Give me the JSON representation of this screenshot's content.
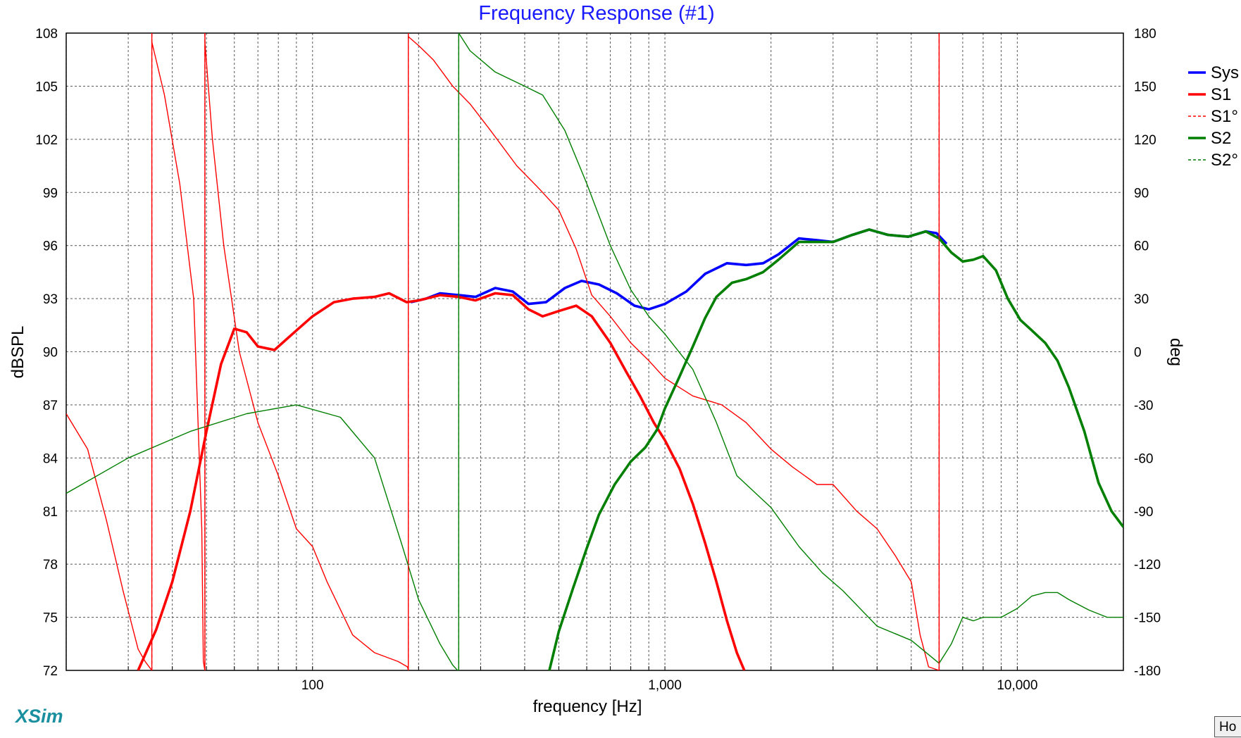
{
  "brand": "XSim",
  "hold_button_label": "Ho",
  "chart_data": {
    "type": "line",
    "title": "Frequency Response (#1)",
    "xlabel": "frequency [Hz]",
    "ylabel": "dBSPL",
    "y2label": "deg",
    "xscale": "log",
    "xlim": [
      20,
      20000
    ],
    "ylim": [
      72,
      108
    ],
    "y2lim": [
      -180,
      180
    ],
    "grid": true,
    "legend_position": "right",
    "x_ticks": [
      100,
      1000,
      10000
    ],
    "x_tick_labels": [
      "100",
      "1,000",
      "10,000"
    ],
    "y_ticks": [
      72,
      75,
      78,
      81,
      84,
      87,
      90,
      93,
      96,
      99,
      102,
      105,
      108
    ],
    "y2_ticks": [
      -180,
      -150,
      -120,
      -90,
      -60,
      -30,
      0,
      30,
      60,
      90,
      120,
      150,
      180
    ],
    "series": [
      {
        "name": "Sys",
        "axis": "left",
        "color": "#0000ff",
        "style": "solid",
        "points": [
          [
            190,
            92.8
          ],
          [
            210,
            93.0
          ],
          [
            230,
            93.3
          ],
          [
            260,
            93.2
          ],
          [
            290,
            93.1
          ],
          [
            330,
            93.6
          ],
          [
            370,
            93.4
          ],
          [
            410,
            92.7
          ],
          [
            460,
            92.8
          ],
          [
            520,
            93.6
          ],
          [
            580,
            94.0
          ],
          [
            650,
            93.8
          ],
          [
            730,
            93.3
          ],
          [
            820,
            92.6
          ],
          [
            900,
            92.4
          ],
          [
            1000,
            92.7
          ],
          [
            1150,
            93.4
          ],
          [
            1300,
            94.4
          ],
          [
            1500,
            95.0
          ],
          [
            1700,
            94.9
          ],
          [
            1900,
            95.0
          ],
          [
            2100,
            95.5
          ],
          [
            2400,
            96.4
          ],
          [
            2700,
            96.3
          ],
          [
            3000,
            96.2
          ],
          [
            3400,
            96.6
          ],
          [
            3800,
            96.9
          ],
          [
            4300,
            96.6
          ],
          [
            4900,
            96.5
          ],
          [
            5500,
            96.8
          ],
          [
            5900,
            96.7
          ],
          [
            6300,
            96.1
          ]
        ]
      },
      {
        "name": "S1",
        "axis": "left",
        "color": "#ff0000",
        "style": "solid",
        "points": [
          [
            32,
            72.0
          ],
          [
            36,
            74.3
          ],
          [
            40,
            77.0
          ],
          [
            45,
            81.0
          ],
          [
            50,
            85.5
          ],
          [
            55,
            89.3
          ],
          [
            60,
            91.3
          ],
          [
            65,
            91.1
          ],
          [
            70,
            90.3
          ],
          [
            78,
            90.1
          ],
          [
            90,
            91.2
          ],
          [
            100,
            92.0
          ],
          [
            115,
            92.8
          ],
          [
            130,
            93.0
          ],
          [
            150,
            93.1
          ],
          [
            165,
            93.3
          ],
          [
            185,
            92.8
          ],
          [
            200,
            92.9
          ],
          [
            230,
            93.2
          ],
          [
            260,
            93.1
          ],
          [
            290,
            92.9
          ],
          [
            330,
            93.3
          ],
          [
            370,
            93.2
          ],
          [
            410,
            92.4
          ],
          [
            450,
            92.0
          ],
          [
            500,
            92.3
          ],
          [
            560,
            92.6
          ],
          [
            620,
            92.0
          ],
          [
            700,
            90.5
          ],
          [
            780,
            88.8
          ],
          [
            850,
            87.5
          ],
          [
            930,
            86.0
          ],
          [
            1000,
            85.0
          ],
          [
            1100,
            83.4
          ],
          [
            1200,
            81.4
          ],
          [
            1300,
            79.2
          ],
          [
            1400,
            77.0
          ],
          [
            1500,
            74.8
          ],
          [
            1600,
            73.0
          ],
          [
            1680,
            72.0
          ]
        ]
      },
      {
        "name": "S1°",
        "axis": "right",
        "color": "#ff0000",
        "style": "dashed",
        "points": [
          [
            20,
            -35
          ],
          [
            23,
            -55
          ],
          [
            26,
            -95
          ],
          [
            29,
            -135
          ],
          [
            32,
            -168
          ],
          [
            33.5,
            -175
          ],
          [
            35,
            175
          ],
          [
            38,
            145
          ],
          [
            42,
            95
          ],
          [
            46,
            30
          ],
          [
            48.5,
            -100
          ],
          [
            49,
            -175
          ],
          [
            49.5,
            175
          ],
          [
            52,
            120
          ],
          [
            56,
            60
          ],
          [
            62,
            0
          ],
          [
            70,
            -40
          ],
          [
            80,
            -70
          ],
          [
            90,
            -100
          ],
          [
            100,
            -110
          ],
          [
            110,
            -130
          ],
          [
            130,
            -160
          ],
          [
            150,
            -170
          ],
          [
            175,
            -175
          ],
          [
            186,
            -178
          ],
          [
            187,
            178
          ],
          [
            200,
            173
          ],
          [
            220,
            165
          ],
          [
            250,
            150
          ],
          [
            280,
            140
          ],
          [
            320,
            125
          ],
          [
            380,
            105
          ],
          [
            440,
            92
          ],
          [
            500,
            80
          ],
          [
            560,
            58
          ],
          [
            620,
            32
          ],
          [
            700,
            20
          ],
          [
            800,
            5
          ],
          [
            900,
            -5
          ],
          [
            1000,
            -15
          ],
          [
            1200,
            -25
          ],
          [
            1450,
            -30
          ],
          [
            1700,
            -40
          ],
          [
            2000,
            -55
          ],
          [
            2300,
            -65
          ],
          [
            2700,
            -75
          ],
          [
            3000,
            -75
          ],
          [
            3500,
            -90
          ],
          [
            4000,
            -100
          ],
          [
            4500,
            -115
          ],
          [
            5000,
            -130
          ],
          [
            5300,
            -160
          ],
          [
            5600,
            -178
          ],
          [
            6000,
            179
          ]
        ]
      },
      {
        "name": "S2",
        "axis": "left",
        "color": "#007f00",
        "style": "solid",
        "points": [
          [
            470,
            72.0
          ],
          [
            500,
            74.2
          ],
          [
            550,
            76.7
          ],
          [
            600,
            78.9
          ],
          [
            650,
            80.8
          ],
          [
            720,
            82.5
          ],
          [
            800,
            83.8
          ],
          [
            880,
            84.6
          ],
          [
            950,
            85.6
          ],
          [
            1000,
            86.8
          ],
          [
            1100,
            88.6
          ],
          [
            1200,
            90.3
          ],
          [
            1300,
            91.9
          ],
          [
            1400,
            93.1
          ],
          [
            1550,
            93.9
          ],
          [
            1700,
            94.1
          ],
          [
            1900,
            94.5
          ],
          [
            2100,
            95.2
          ],
          [
            2400,
            96.2
          ],
          [
            2700,
            96.2
          ],
          [
            3000,
            96.2
          ],
          [
            3400,
            96.6
          ],
          [
            3800,
            96.9
          ],
          [
            4300,
            96.6
          ],
          [
            4900,
            96.5
          ],
          [
            5500,
            96.8
          ],
          [
            6000,
            96.4
          ],
          [
            6500,
            95.6
          ],
          [
            7000,
            95.1
          ],
          [
            7500,
            95.2
          ],
          [
            8000,
            95.4
          ],
          [
            8700,
            94.6
          ],
          [
            9400,
            93.0
          ],
          [
            10200,
            91.8
          ],
          [
            11000,
            91.2
          ],
          [
            12000,
            90.5
          ],
          [
            13000,
            89.5
          ],
          [
            14000,
            88.0
          ],
          [
            15500,
            85.5
          ],
          [
            17000,
            82.6
          ],
          [
            18500,
            81.0
          ],
          [
            20000,
            80.1
          ]
        ]
      },
      {
        "name": "S2°",
        "axis": "right",
        "color": "#007f00",
        "style": "dashed",
        "points": [
          [
            20,
            -80
          ],
          [
            30,
            -60
          ],
          [
            45,
            -45
          ],
          [
            65,
            -35
          ],
          [
            90,
            -30
          ],
          [
            120,
            -37
          ],
          [
            150,
            -60
          ],
          [
            180,
            -110
          ],
          [
            200,
            -140
          ],
          [
            230,
            -165
          ],
          [
            250,
            -177
          ],
          [
            258,
            -180
          ],
          [
            260,
            180
          ],
          [
            280,
            170
          ],
          [
            330,
            158
          ],
          [
            400,
            150
          ],
          [
            450,
            145
          ],
          [
            520,
            125
          ],
          [
            600,
            95
          ],
          [
            700,
            60
          ],
          [
            800,
            35
          ],
          [
            900,
            20
          ],
          [
            1000,
            10
          ],
          [
            1200,
            -10
          ],
          [
            1400,
            -40
          ],
          [
            1600,
            -70
          ],
          [
            2000,
            -88
          ],
          [
            2400,
            -110
          ],
          [
            2800,
            -125
          ],
          [
            3200,
            -135
          ],
          [
            4000,
            -155
          ],
          [
            5000,
            -163
          ],
          [
            6000,
            -176
          ],
          [
            6500,
            -165
          ],
          [
            7000,
            -150
          ],
          [
            7500,
            -152
          ],
          [
            8000,
            -150
          ],
          [
            9000,
            -150
          ],
          [
            10000,
            -145
          ],
          [
            11000,
            -138
          ],
          [
            12000,
            -136
          ],
          [
            13000,
            -136
          ],
          [
            14000,
            -140
          ],
          [
            16000,
            -146
          ],
          [
            18000,
            -150
          ],
          [
            20000,
            -150
          ]
        ]
      }
    ]
  }
}
